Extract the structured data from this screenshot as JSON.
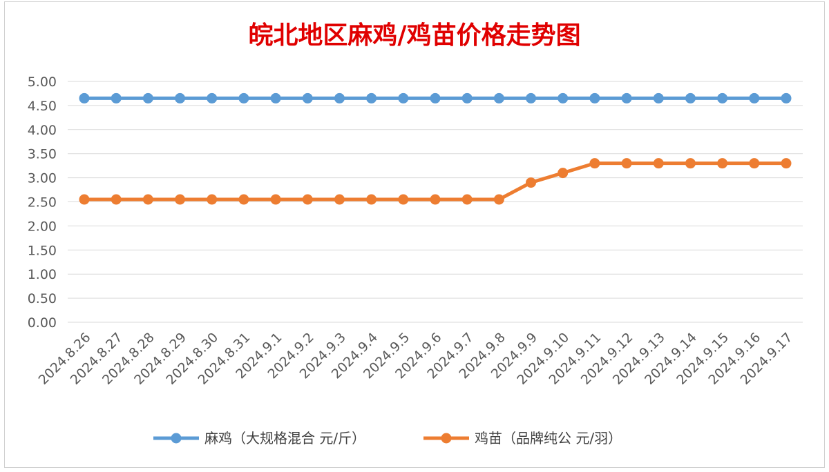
{
  "chart_data": {
    "type": "line",
    "title": "皖北地区麻鸡/鸡苗价格走势图",
    "categories": [
      "2024.8.26",
      "2024.8.27",
      "2024.8.28",
      "2024.8.29",
      "2024.8.30",
      "2024.8.31",
      "2024.9.1",
      "2024.9.2",
      "2024.9.3",
      "2024.9.4",
      "2024.9.5",
      "2024.9.6",
      "2024.9.7",
      "2024.9.8",
      "2024.9.9",
      "2024.9.10",
      "2024.9.11",
      "2024.9.12",
      "2024.9.13",
      "2024.9.14",
      "2024.9.15",
      "2024.9.16",
      "2024.9.17"
    ],
    "y_ticks": [
      "0.00",
      "0.50",
      "1.00",
      "1.50",
      "2.00",
      "2.50",
      "3.00",
      "3.50",
      "4.00",
      "4.50",
      "5.00"
    ],
    "ylim": [
      0,
      5
    ],
    "grid": true,
    "legend_position": "bottom",
    "series": [
      {
        "name": "麻鸡（大规格混合 元/斤）",
        "color": "#5b9bd5",
        "values": [
          4.65,
          4.65,
          4.65,
          4.65,
          4.65,
          4.65,
          4.65,
          4.65,
          4.65,
          4.65,
          4.65,
          4.65,
          4.65,
          4.65,
          4.65,
          4.65,
          4.65,
          4.65,
          4.65,
          4.65,
          4.65,
          4.65,
          4.65
        ]
      },
      {
        "name": "鸡苗（品牌纯公 元/羽）",
        "color": "#ed7d31",
        "values": [
          2.55,
          2.55,
          2.55,
          2.55,
          2.55,
          2.55,
          2.55,
          2.55,
          2.55,
          2.55,
          2.55,
          2.55,
          2.55,
          2.55,
          2.9,
          3.1,
          3.3,
          3.3,
          3.3,
          3.3,
          3.3,
          3.3,
          3.3
        ]
      }
    ]
  }
}
